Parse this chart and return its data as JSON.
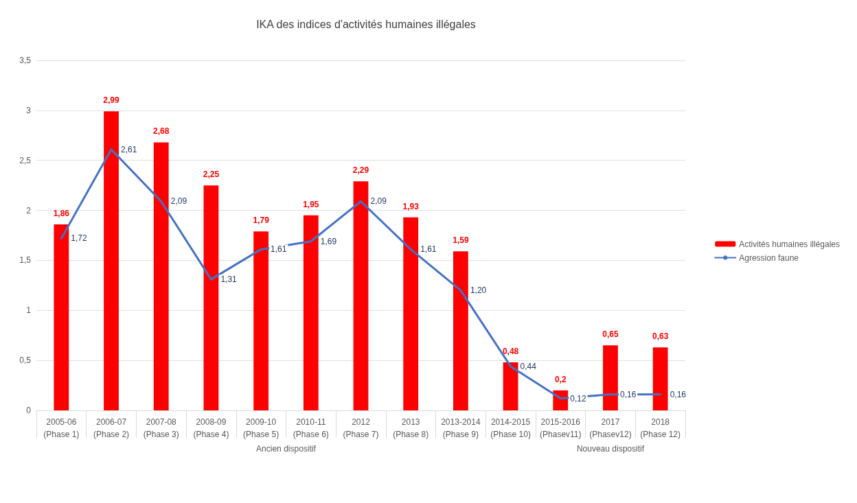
{
  "chart_data": {
    "type": "bar",
    "title": "IKA des indices d'activités humaines illégales",
    "categories": [
      "2005-06\n(Phase 1)",
      "2006-07\n(Phase 2)",
      "2007-08\n(Phase 3)",
      "2008-09\n(Phase 4)",
      "2009-10\n(Phase 5)",
      "2010-11\n(Phase 6)",
      "2012\n(Phase 7)",
      "2013\n(Phase 8)",
      "2013-2014\n(Phase 9)",
      "2014-2015\n(Phase 10)",
      "2015-2016\n(Phasev11)",
      "2017\n(Phasev12)",
      "2018\n(Phase 12)"
    ],
    "series": [
      {
        "name": "Activités humaines illégales",
        "color": "#ff0000",
        "values": [
          1.86,
          2.99,
          2.68,
          2.25,
          1.79,
          1.95,
          2.29,
          1.93,
          1.59,
          0.48,
          0.2,
          0.65,
          0.63
        ],
        "value_labels": [
          "1,86",
          "2,99",
          "2,68",
          "2,25",
          "1,79",
          "1,95",
          "2,29",
          "1,93",
          "1,59",
          "0,48",
          "0,2",
          "0,65",
          "0,63"
        ]
      },
      {
        "name": "Agression faune",
        "type": "line",
        "color": "#4472c4",
        "values": [
          1.72,
          2.61,
          2.09,
          1.31,
          1.61,
          1.69,
          2.09,
          1.61,
          1.2,
          0.44,
          0.12,
          0.16,
          0.16
        ],
        "value_labels": [
          "1,72",
          "2,61",
          "2,09",
          "1,31",
          "1,61",
          "1,69",
          "2,09",
          "1,61",
          "1,20",
          "0,44",
          "0,12",
          "0,16",
          "0,16"
        ]
      }
    ],
    "ylim": [
      0,
      3.5
    ],
    "yticks": [
      {
        "value": 0,
        "label": "0"
      },
      {
        "value": 0.5,
        "label": "0,5"
      },
      {
        "value": 1,
        "label": "1"
      },
      {
        "value": 1.5,
        "label": "1,5"
      },
      {
        "value": 2,
        "label": "2"
      },
      {
        "value": 2.5,
        "label": "2,5"
      },
      {
        "value": 3,
        "label": "3"
      },
      {
        "value": 3.5,
        "label": "3,5"
      }
    ],
    "grid": "y",
    "legend": "right",
    "marker": "none",
    "line_style": "solid",
    "annotations": [
      "Ancien dispositif",
      "Nouveau dispositif"
    ]
  }
}
